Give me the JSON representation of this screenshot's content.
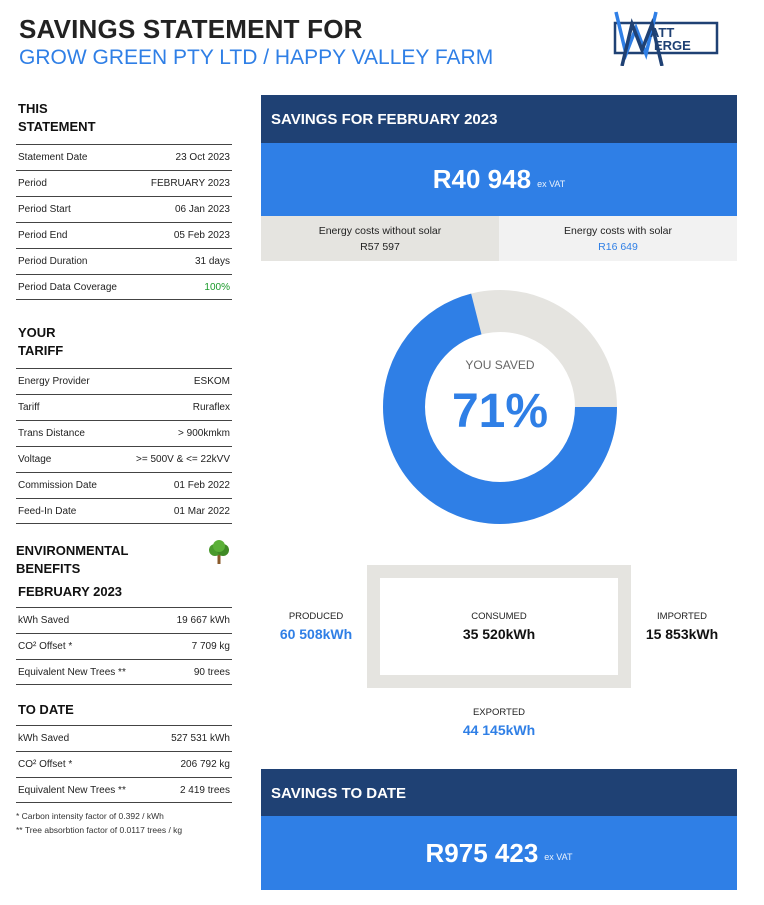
{
  "header": {
    "title": "SAVINGS STATEMENT FOR",
    "subtitle": "GROW GREEN PTY LTD / HAPPY VALLEY FARM",
    "logo_text_top": "ATT",
    "logo_text_bottom": "ERGE"
  },
  "this_statement": {
    "heading_line1": "THIS",
    "heading_line2": "STATEMENT",
    "rows": [
      {
        "label": "Statement Date",
        "value": "23 Oct 2023"
      },
      {
        "label": "Period",
        "value": "FEBRUARY 2023"
      },
      {
        "label": "Period Start",
        "value": "06 Jan 2023"
      },
      {
        "label": "Period End",
        "value": "05 Feb 2023"
      },
      {
        "label": "Period Duration",
        "value": "31 days"
      },
      {
        "label": "Period Data Coverage",
        "value": "100%"
      }
    ]
  },
  "your_tariff": {
    "heading_line1": "YOUR",
    "heading_line2": "TARIFF",
    "rows": [
      {
        "label": "Energy Provider",
        "value": "ESKOM"
      },
      {
        "label": "Tariff",
        "value": "Ruraflex"
      },
      {
        "label": "Trans Distance",
        "value": "> 900kmkm"
      },
      {
        "label": "Voltage",
        "value": ">= 500V & <= 22kVV"
      },
      {
        "label": "Commission Date",
        "value": "01 Feb 2022"
      },
      {
        "label": "Feed-In Date",
        "value": "01 Mar 2022"
      }
    ]
  },
  "environmental": {
    "heading_line1": "ENVIRONMENTAL",
    "heading_line2": "BENEFITS",
    "icon": "tree-icon",
    "month_heading": "FEBRUARY 2023",
    "month_rows": [
      {
        "label": "kWh Saved",
        "value": "19 667 kWh"
      },
      {
        "label": "CO² Offset *",
        "value": "7 709 kg"
      },
      {
        "label": "Equivalent New Trees **",
        "value": "90 trees"
      }
    ],
    "to_date_heading": "TO DATE",
    "to_date_rows": [
      {
        "label": "kWh Saved",
        "value": "527 531 kWh"
      },
      {
        "label": "CO² Offset *",
        "value": "206 792 kg"
      },
      {
        "label": "Equivalent New Trees **",
        "value": "2 419 trees"
      }
    ],
    "note1": "* Carbon intensity factor of 0.392 / kWh",
    "note2": "** Tree absorbtion factor of 0.0117 trees / kg"
  },
  "savings_month": {
    "heading": "SAVINGS FOR FEBRUARY 2023",
    "amount": "R40 948",
    "amount_suffix": "ex VAT",
    "without_solar_label": "Energy costs without solar",
    "without_solar_value": "R57 597",
    "with_solar_label": "Energy costs with solar",
    "with_solar_value": "R16 649"
  },
  "donut": {
    "label": "YOU SAVED",
    "percent_text": "71%",
    "percent_value": 71,
    "color_saved": "#2f7fe6",
    "color_rest": "#e5e4e0"
  },
  "energy_flow": {
    "produced_label": "PRODUCED",
    "produced_value": "60 508kWh",
    "consumed_label": "CONSUMED",
    "consumed_value": "35 520kWh",
    "imported_label": "IMPORTED",
    "imported_value": "15 853kWh",
    "exported_label": "EXPORTED",
    "exported_value": "44 145kWh"
  },
  "savings_to_date": {
    "heading": "SAVINGS TO DATE",
    "amount": "R975 423",
    "amount_suffix": "ex VAT"
  },
  "colors": {
    "navy": "#1f4174",
    "blue": "#2f7fe6",
    "grey": "#e5e4e0",
    "green": "#1a9a2a"
  }
}
